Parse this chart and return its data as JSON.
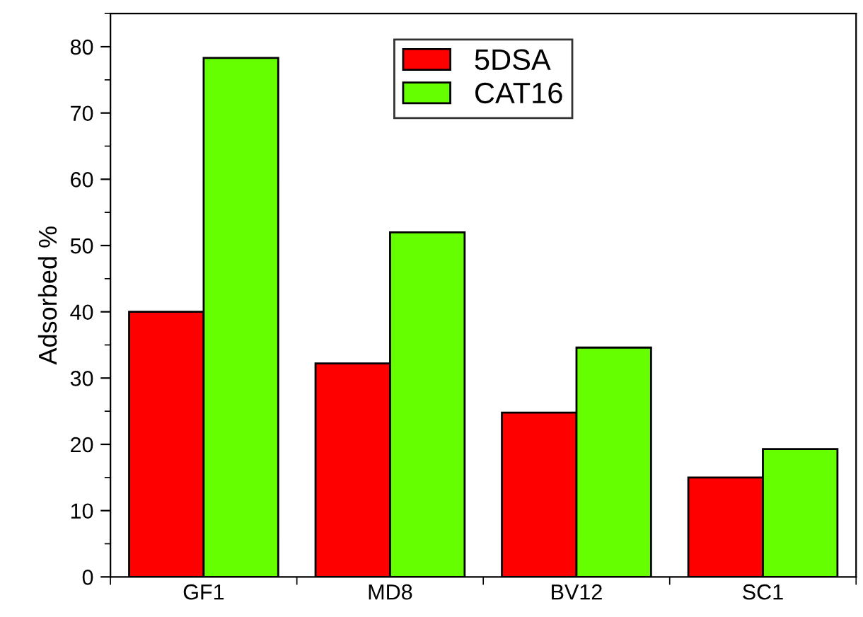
{
  "chart_data": {
    "type": "bar",
    "ylabel": "Adsorbed %",
    "categories": [
      "GF1",
      "MD8",
      "BV12",
      "SC1"
    ],
    "series": [
      {
        "name": "5DSA",
        "color": "#ff0000",
        "values": [
          40,
          32.2,
          24.8,
          15
        ]
      },
      {
        "name": "CAT16",
        "color": "#66ff00",
        "values": [
          78.3,
          52,
          34.6,
          19.3
        ]
      }
    ],
    "ylim": [
      0,
      85
    ],
    "yticks": [
      0,
      10,
      20,
      30,
      40,
      50,
      60,
      70,
      80
    ],
    "grid": false,
    "legend": "top"
  }
}
